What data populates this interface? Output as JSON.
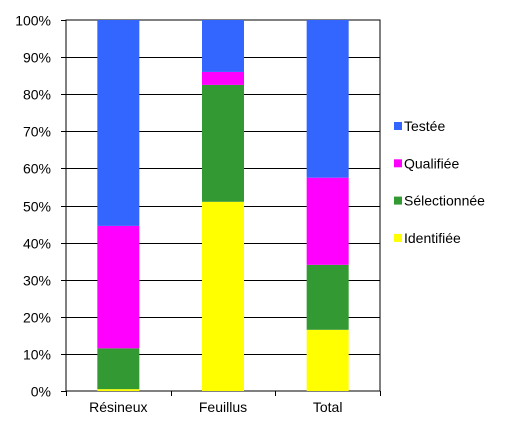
{
  "chart_data": {
    "type": "bar",
    "stacked": true,
    "percent": true,
    "categories": [
      "Résineux",
      "Feuillus",
      "Total"
    ],
    "series": [
      {
        "name": "Identifiée",
        "color": "#FFFF00",
        "values": [
          0.5,
          51,
          16.5
        ]
      },
      {
        "name": "Sélectionnée",
        "color": "#339933",
        "values": [
          11,
          31.5,
          17.5
        ]
      },
      {
        "name": "Qualifiée",
        "color": "#FF00FF",
        "values": [
          33,
          3.5,
          23.5
        ]
      },
      {
        "name": "Testée",
        "color": "#3366FF",
        "values": [
          55.5,
          14,
          42.5
        ]
      }
    ],
    "ylim": [
      0,
      100
    ],
    "yticks": [
      "0%",
      "10%",
      "20%",
      "30%",
      "40%",
      "50%",
      "60%",
      "70%",
      "80%",
      "90%",
      "100%"
    ],
    "legend_order": [
      "Testée",
      "Qualifiée",
      "Sélectionnée",
      "Identifiée"
    ],
    "legend_position": "right",
    "grid": true,
    "title": "",
    "xlabel": "",
    "ylabel": ""
  }
}
